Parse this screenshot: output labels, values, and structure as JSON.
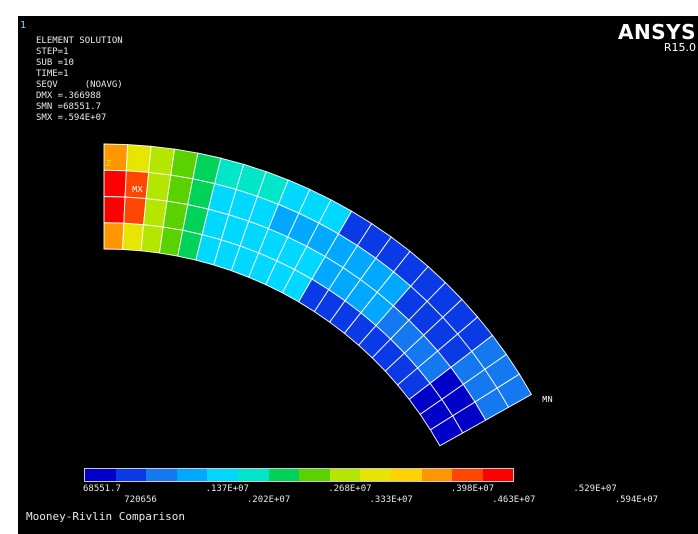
{
  "viewport": {
    "window_number": "1",
    "info_lines": [
      "ELEMENT SOLUTION",
      "",
      "STEP=1",
      "SUB =10",
      "TIME=1",
      "SEQV     (NOAVG)",
      "DMX =.366988",
      "SMN =68551.7",
      "SMX =.594E+07"
    ],
    "brand": {
      "name": "ANSYS",
      "version": "R15.0"
    },
    "markers": {
      "max": "MX",
      "min": "MN",
      "axis_z": "Z"
    },
    "caption": "Mooney-Rivlin Comparison"
  },
  "contour_legend": {
    "colors": [
      "#0000c8",
      "#0a3ae6",
      "#1478f0",
      "#00a8ff",
      "#00d8ff",
      "#00e6c8",
      "#00d25a",
      "#5ad200",
      "#b4e600",
      "#e6e600",
      "#ffd200",
      "#ff9600",
      "#ff4600",
      "#ff0000"
    ],
    "labels_top": [
      "68551.7",
      ".137E+07",
      ".268E+07",
      ".398E+07",
      ".529E+07"
    ],
    "labels_bottom": [
      "720656",
      ".202E+07",
      ".333E+07",
      ".463E+07",
      ".594E+07"
    ]
  }
}
